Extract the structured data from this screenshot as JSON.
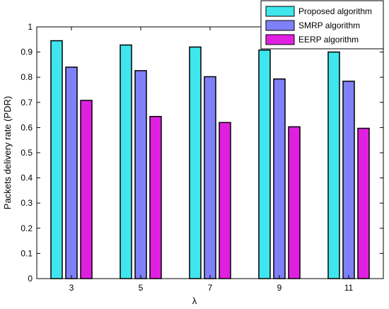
{
  "chart_data": {
    "type": "bar",
    "categories": [
      "3",
      "5",
      "7",
      "9",
      "11"
    ],
    "series": [
      {
        "name": "Proposed algorithm",
        "color": "#3fe6ee",
        "values": [
          0.945,
          0.928,
          0.92,
          0.908,
          0.9
        ]
      },
      {
        "name": "SMRP algorithm",
        "color": "#8080f8",
        "values": [
          0.84,
          0.826,
          0.802,
          0.793,
          0.784
        ]
      },
      {
        "name": "EERP algorithm",
        "color": "#e020e0",
        "values": [
          0.708,
          0.644,
          0.62,
          0.603,
          0.597
        ]
      }
    ],
    "xlabel": "λ",
    "ylabel": "Packets delivery rate (PDR)",
    "ylim": [
      0,
      1
    ],
    "yticks": [
      "0",
      "0.1",
      "0.2",
      "0.3",
      "0.4",
      "0.5",
      "0.6",
      "0.7",
      "0.8",
      "0.9",
      "1"
    ],
    "legend_position": "top-right",
    "grid": false
  }
}
